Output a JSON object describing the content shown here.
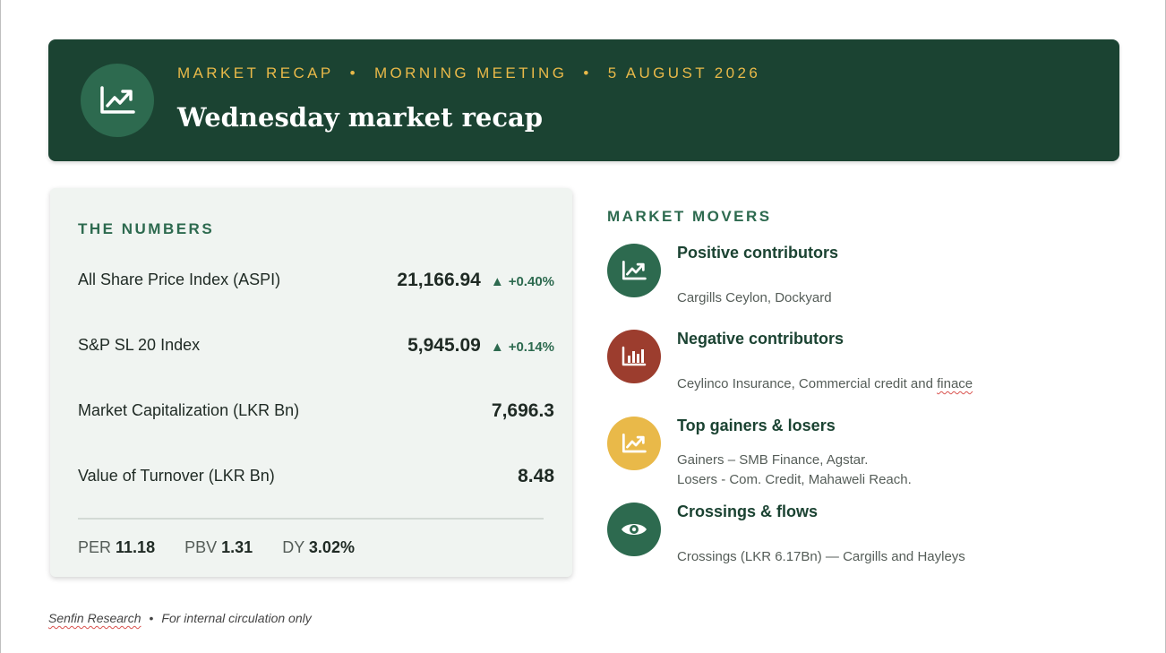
{
  "header": {
    "kicker_parts": [
      "MARKET RECAP",
      "MORNING MEETING",
      "5 AUGUST 2026"
    ],
    "kicker_separator": "•",
    "title": "Wednesday market recap",
    "icon": "chart-line-up-icon"
  },
  "numbers": {
    "section_title": "THE NUMBERS",
    "rows": [
      {
        "label": "All Share Price Index (ASPI)",
        "value": "21,166.94",
        "direction": "▲",
        "change": "+0.40%"
      },
      {
        "label": "S&P SL 20 Index",
        "value": "5,945.09",
        "direction": "▲",
        "change": "+0.14%"
      },
      {
        "label": "Market Capitalization (LKR Bn)",
        "value": "7,696.3"
      },
      {
        "label": "Value of Turnover (LKR Bn)",
        "value": "8.48"
      }
    ],
    "ratios": [
      {
        "label": "PER",
        "value": "11.18"
      },
      {
        "label": "PBV",
        "value": "1.31"
      },
      {
        "label": "DY",
        "value": "3.02%"
      }
    ]
  },
  "movers": {
    "section_title": "MARKET MOVERS",
    "items": [
      {
        "title": "Positive contributors",
        "lines": [
          "Cargills Ceylon, Dockyard"
        ],
        "icon": "chart-line-up-icon",
        "color": "#2d6a4f"
      },
      {
        "title": "Negative contributors",
        "line_before": "Ceylinco Insurance, Commercial credit and ",
        "line_flagged": "finace",
        "icon": "bar-chart-icon",
        "color": "#9c3d2e"
      },
      {
        "title": "Top gainers & losers",
        "lines": [
          "Gainers – SMB Finance, Agstar.",
          "Losers - Com. Credit, Mahaweli Reach."
        ],
        "icon": "chart-line-up-icon",
        "color": "#e9b949"
      },
      {
        "title": "Crossings & flows",
        "lines": [
          "Crossings (LKR 6.17Bn) — Cargills and Hayleys"
        ],
        "icon": "eye-icon",
        "color": "#2d6a4f"
      }
    ]
  },
  "footer": {
    "source": "Senfin Research",
    "separator": "•",
    "note": "For internal circulation only"
  },
  "colors": {
    "banner": "#1b4332",
    "accent_gold": "#e9b949",
    "accent_green": "#2d6a4f",
    "accent_red": "#9c3d2e",
    "card_bg": "#f0f4f1"
  }
}
